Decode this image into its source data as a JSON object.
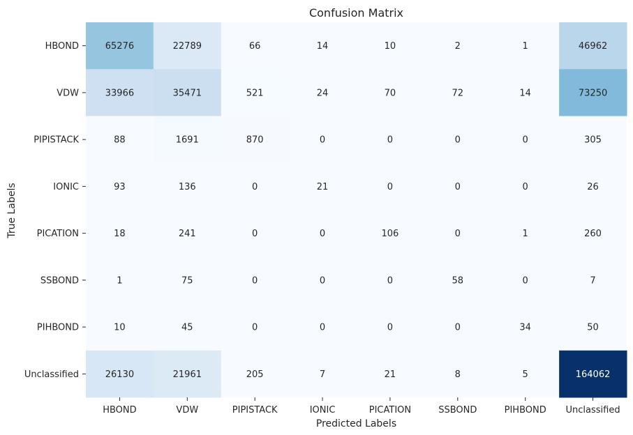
{
  "chart_data": {
    "type": "heatmap",
    "title": "Confusion Matrix",
    "xlabel": "Predicted Labels",
    "ylabel": "True Labels",
    "x_categories": [
      "HBOND",
      "VDW",
      "PIPISTACK",
      "IONIC",
      "PICATION",
      "SSBOND",
      "PIHBOND",
      "Unclassified"
    ],
    "y_categories": [
      "HBOND",
      "VDW",
      "PIPISTACK",
      "IONIC",
      "PICATION",
      "SSBOND",
      "PIHBOND",
      "Unclassified"
    ],
    "values": [
      [
        65276,
        22789,
        66,
        14,
        10,
        2,
        1,
        46962
      ],
      [
        33966,
        35471,
        521,
        24,
        70,
        72,
        14,
        73250
      ],
      [
        88,
        1691,
        870,
        0,
        0,
        0,
        0,
        305
      ],
      [
        93,
        136,
        0,
        21,
        0,
        0,
        0,
        26
      ],
      [
        18,
        241,
        0,
        0,
        106,
        0,
        1,
        260
      ],
      [
        1,
        75,
        0,
        0,
        0,
        58,
        0,
        7
      ],
      [
        10,
        45,
        0,
        0,
        0,
        0,
        34,
        50
      ],
      [
        26130,
        21961,
        205,
        7,
        21,
        8,
        5,
        164062
      ]
    ],
    "colormap": "Blues",
    "colorbar": false,
    "annotations": true
  }
}
